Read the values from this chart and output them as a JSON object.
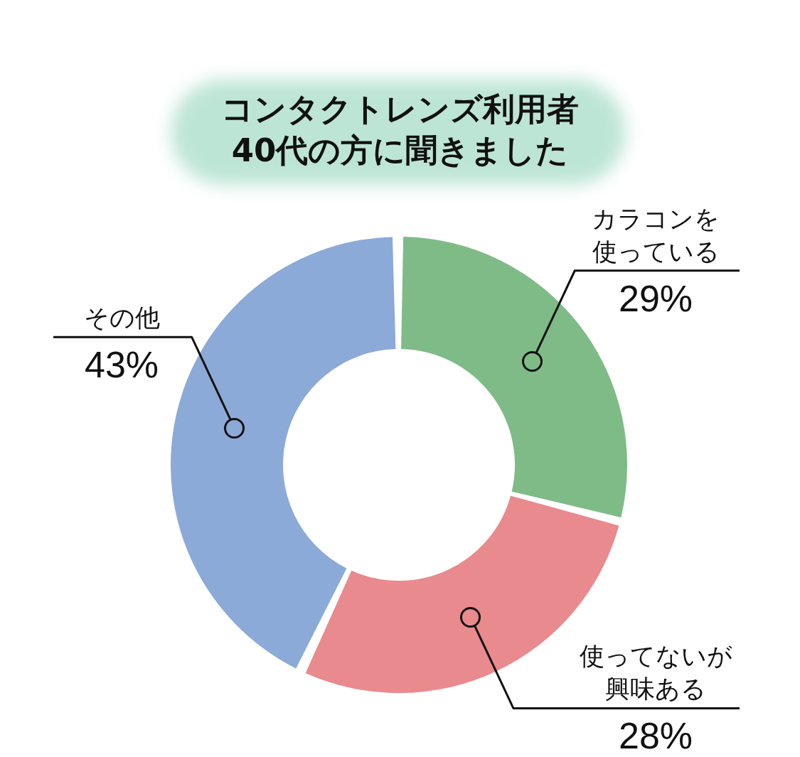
{
  "chart_data": {
    "type": "donut",
    "title": "コンタクトレンズ利用者40代の方に聞きました",
    "categories": [
      "カラコンを使っている",
      "使ってないが興味ある",
      "その他"
    ],
    "values": [
      29,
      28,
      43
    ],
    "value_labels": [
      "29%",
      "28%",
      "43%"
    ],
    "colors": [
      "#7fbb87",
      "#e88a8e",
      "#8caad8"
    ]
  }
}
